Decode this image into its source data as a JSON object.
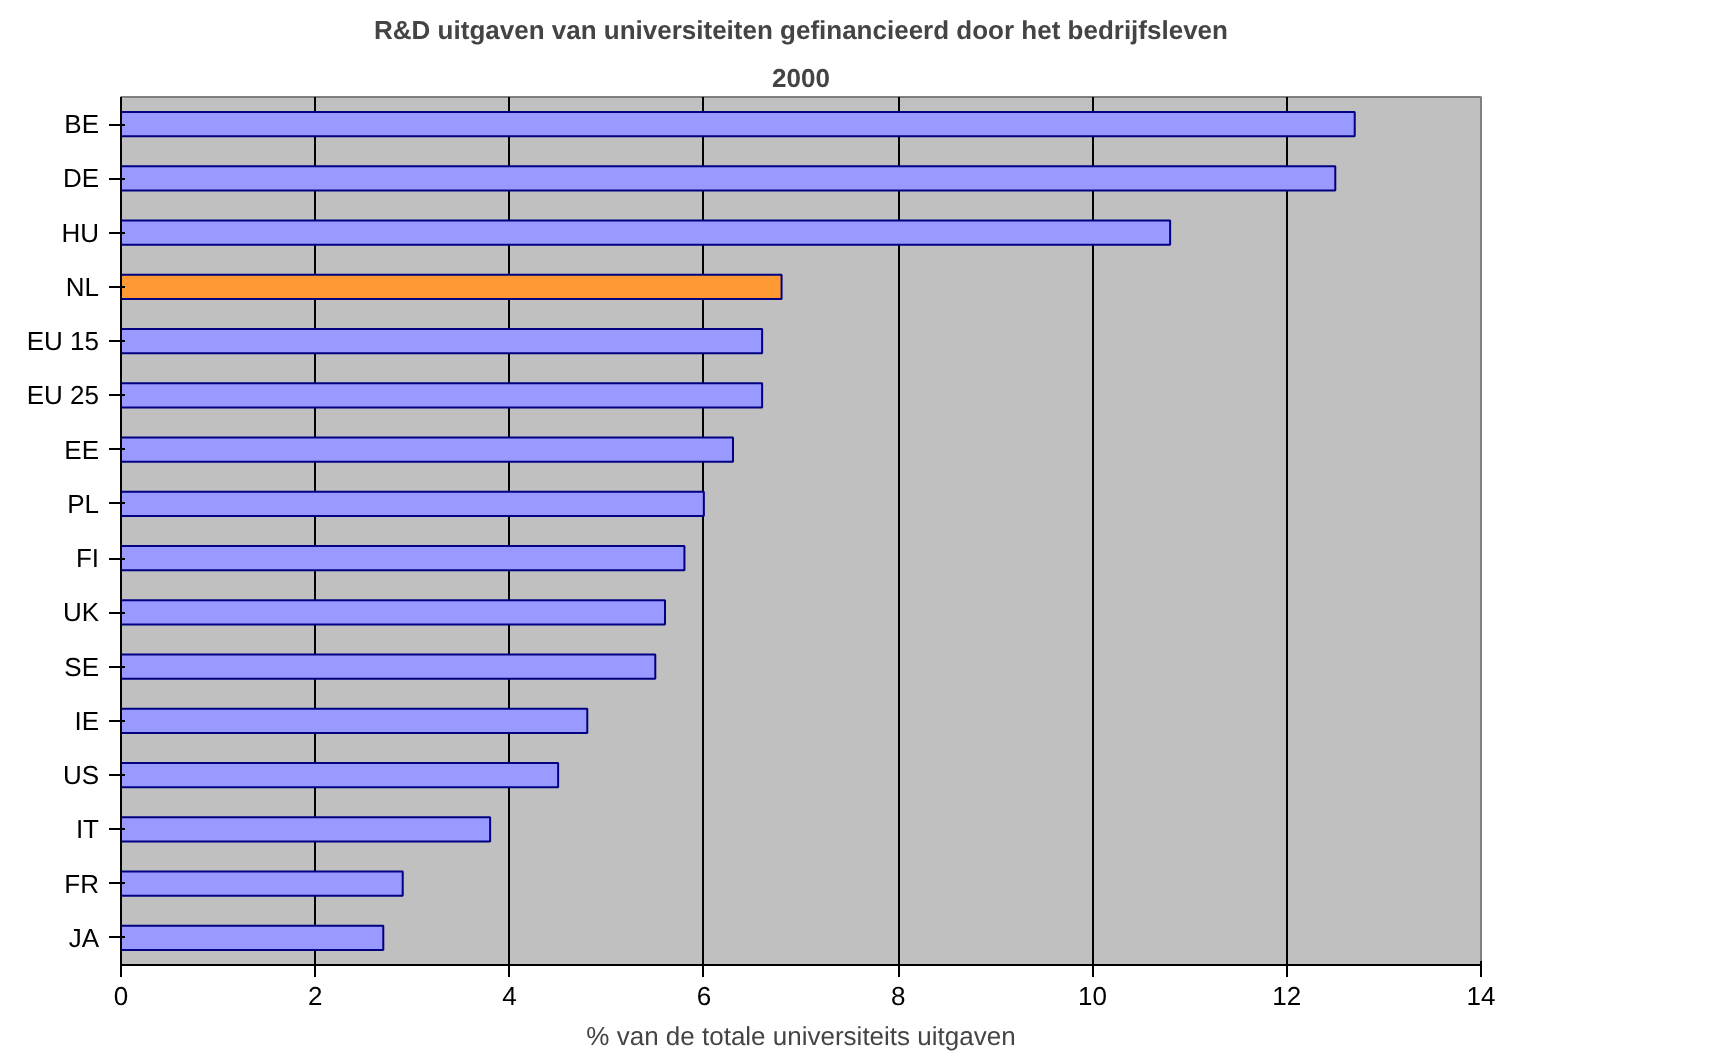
{
  "chart_data": {
    "type": "bar",
    "orientation": "horizontal",
    "title": "R&D uitgaven van universiteiten gefinancieerd door het bedrijfsleven",
    "subtitle": "2000",
    "xlabel": "% van de totale universiteits uitgaven",
    "categories": [
      "BE",
      "DE",
      "HU",
      "NL",
      "EU 15",
      "EU 25",
      "EE",
      "PL",
      "FI",
      "UK",
      "SE",
      "IE",
      "US",
      "IT",
      "FR",
      "JA"
    ],
    "values": [
      12.7,
      12.5,
      10.8,
      6.8,
      6.6,
      6.6,
      6.3,
      6.0,
      5.8,
      5.6,
      5.5,
      4.8,
      4.5,
      3.8,
      2.9,
      2.7
    ],
    "colors": [
      "#9999ff",
      "#9999ff",
      "#9999ff",
      "#ff9933",
      "#9999ff",
      "#9999ff",
      "#9999ff",
      "#9999ff",
      "#9999ff",
      "#9999ff",
      "#9999ff",
      "#9999ff",
      "#9999ff",
      "#9999ff",
      "#9999ff",
      "#9999ff"
    ],
    "xlim": [
      0,
      14
    ],
    "xticks": [
      0,
      2,
      4,
      6,
      8,
      10,
      12,
      14
    ],
    "grid": "x"
  }
}
